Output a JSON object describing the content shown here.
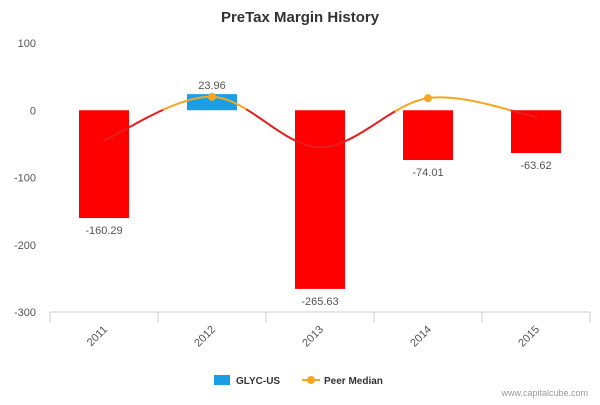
{
  "chart_data": {
    "type": "bar",
    "title": "PreTax Margin History",
    "categories": [
      "2011",
      "2012",
      "2013",
      "2014",
      "2015"
    ],
    "series": [
      {
        "name": "GLYC-US",
        "values": [
          -160.29,
          23.96,
          -265.63,
          -74.01,
          -63.62
        ],
        "data_labels": [
          "-160.29",
          "23.96",
          "-265.63",
          "-74.01",
          "-63.62"
        ],
        "positive_color": "#1a9fe6",
        "negative_color": "#ff0000"
      },
      {
        "name": "Peer Median",
        "type": "line",
        "smooth": true,
        "values": [
          -45,
          20,
          -55,
          18,
          -10
        ],
        "markers_on": [
          "2012",
          "2014"
        ],
        "color_above_zero": "#f5a623",
        "color_below_zero": "#e61e1e"
      }
    ],
    "ylim": [
      -300,
      100
    ],
    "yticks": [
      100,
      0,
      -100,
      -200,
      -300
    ],
    "ytick_labels": [
      "100",
      "0",
      "-100",
      "-200",
      "-300"
    ],
    "grid": false,
    "legend_position": "bottom-center"
  },
  "watermark": "www.capitalcube.com",
  "colors": {
    "axis": "#cccccc",
    "tick_text": "#555555",
    "label_text": "#555555",
    "title_text": "#333333"
  }
}
